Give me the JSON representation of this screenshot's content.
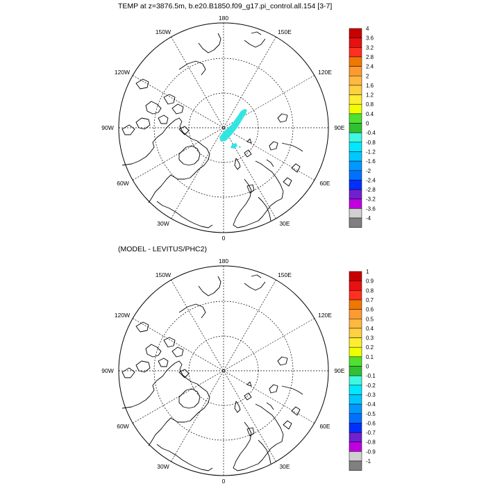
{
  "panels": [
    {
      "title": "TEMP at z=3876.5m, b.e20.B1850.f09_g17.pi_control.all.154 [3-7]",
      "longitude_labels": [
        "180",
        "150E",
        "120E",
        "90E",
        "60E",
        "30E",
        "0",
        "30W",
        "60W",
        "90W",
        "120W",
        "150W"
      ],
      "colorbar_labels": [
        "4",
        "3.6",
        "3.2",
        "2.8",
        "2.4",
        "2",
        "1.6",
        "1.2",
        "0.8",
        "0.4",
        "0",
        "-0.4",
        "-0.8",
        "-1.2",
        "-1.6",
        "-2",
        "-2.4",
        "-2.8",
        "-3.2",
        "-3.6",
        "-4"
      ]
    },
    {
      "title": "(MODEL - LEVITUS/PHC2)",
      "longitude_labels": [
        "180",
        "150E",
        "120E",
        "90E",
        "60E",
        "30E",
        "0",
        "30W",
        "60W",
        "90W",
        "120W",
        "150W"
      ],
      "colorbar_labels": [
        "1",
        "0.9",
        "0.8",
        "0.7",
        "0.6",
        "0.5",
        "0.4",
        "0.3",
        "0.2",
        "0.1",
        "0",
        "-0.1",
        "-0.2",
        "-0.3",
        "-0.4",
        "-0.5",
        "-0.6",
        "-0.7",
        "-0.8",
        "-0.9",
        "-1"
      ]
    }
  ],
  "colorbar_colors": [
    "#c80000",
    "#e81010",
    "#ff3020",
    "#f07800",
    "#ff9a30",
    "#ffb840",
    "#ffd040",
    "#ffee30",
    "#f0ff00",
    "#50e030",
    "#30c030",
    "#40f8e0",
    "#00e8ff",
    "#00c8ff",
    "#0098ff",
    "#0070ff",
    "#0030ff",
    "#7020d0",
    "#c000e0",
    "#d0d0d0",
    "#808080"
  ],
  "anomaly_color": "#33e5e0",
  "colors": {
    "coast": "#000000",
    "grid": "#000000"
  }
}
